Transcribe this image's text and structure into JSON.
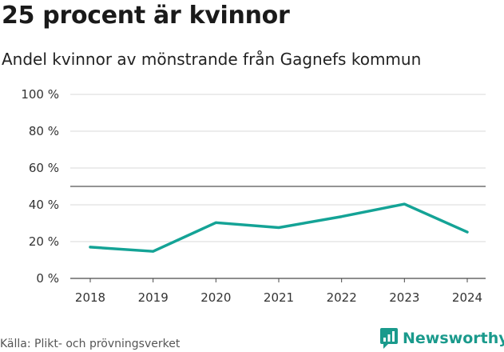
{
  "title": "25 procent är kvinnor",
  "subtitle": "Andel kvinnor av mönstrande från Gagnefs kommun",
  "source": "Källa: Plikt- och prövningsverket",
  "brand": {
    "name": "Newsworthy",
    "icon": "newsworthy-logo-icon",
    "color": "#1a9a8c"
  },
  "chart_data": {
    "type": "line",
    "x": [
      "2018",
      "2019",
      "2020",
      "2021",
      "2022",
      "2023",
      "2024"
    ],
    "series": [
      {
        "values": [
          17,
          14.7,
          30.3,
          27.6,
          33.6,
          40.4,
          25.2
        ],
        "color": "#14a396"
      }
    ],
    "ylim": [
      0,
      100
    ],
    "yticks": [
      0,
      20,
      40,
      60,
      80,
      100
    ],
    "ytick_labels": [
      "0 %",
      "20 %",
      "40 %",
      "60 %",
      "80 %",
      "100 %"
    ],
    "reference_line": 50,
    "grid": true
  }
}
